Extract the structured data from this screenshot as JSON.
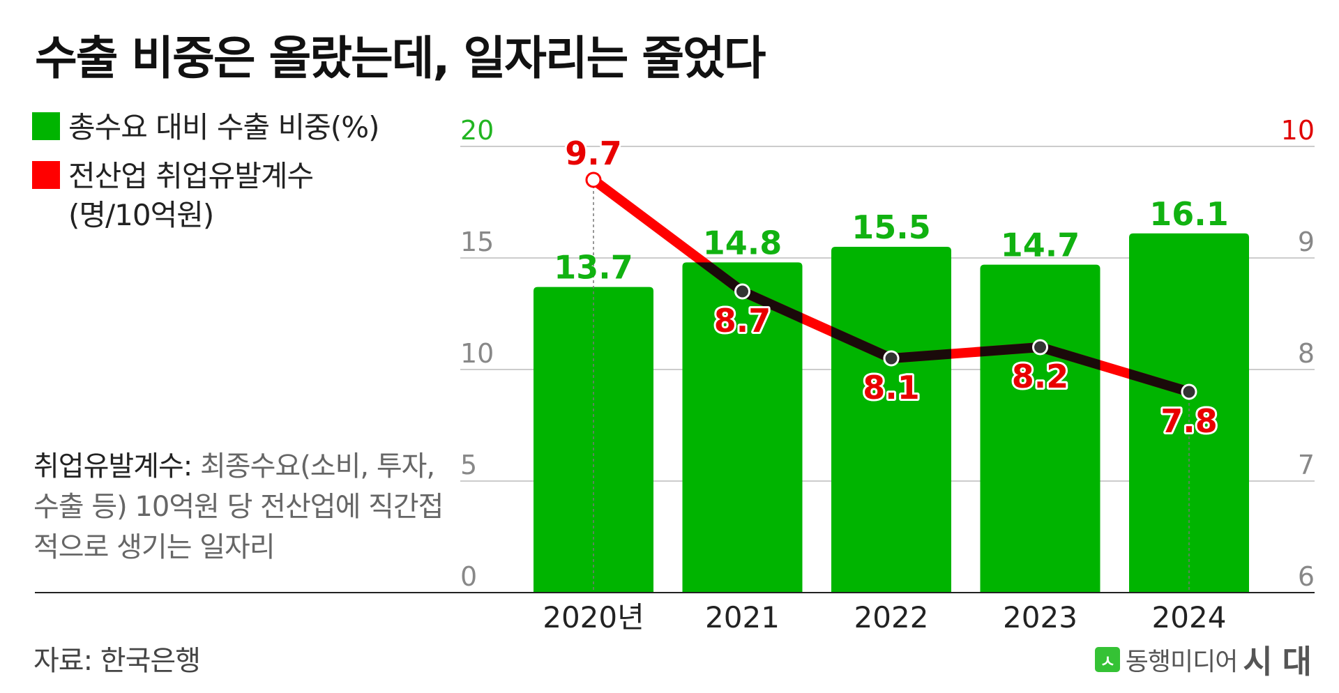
{
  "title": "수출 비중은 올랐는데, 일자리는 줄었다",
  "legend": {
    "bar": {
      "label": "총수요 대비 수출 비중(%)",
      "color": "#00b400"
    },
    "line": {
      "label": "전산업 취업유발계수",
      "unit": "(명/10억원)",
      "color": "#ff0000"
    }
  },
  "note": {
    "label": "취업유발계수:",
    "text": " 최종수요(소비, 투자, 수출 등) 10억원 당 전산업에 직간접적으로 생기는 일자리"
  },
  "source": "자료: 한국은행",
  "brand": {
    "mark": "ㅅ",
    "name": "동행미디어",
    "strong": "시 대"
  },
  "chart_data": {
    "type": "bar",
    "categories": [
      "2020년",
      "2021",
      "2022",
      "2023",
      "2024"
    ],
    "series": [
      {
        "name": "총수요 대비 수출 비중(%)",
        "type": "bar",
        "axis": "left",
        "values": [
          13.7,
          14.8,
          15.5,
          14.7,
          16.1
        ],
        "color": "#00b400"
      },
      {
        "name": "전산업 취업유발계수",
        "type": "line",
        "axis": "right",
        "values": [
          9.7,
          8.7,
          8.1,
          8.2,
          7.8
        ],
        "color": "#ff0000"
      }
    ],
    "ylim_left": [
      0,
      20
    ],
    "yticks_left": [
      "0",
      "5",
      "10",
      "15",
      "20"
    ],
    "ylim_right": [
      6,
      10
    ],
    "yticks_right": [
      "6",
      "7",
      "8",
      "9",
      "10"
    ],
    "grid": true
  }
}
